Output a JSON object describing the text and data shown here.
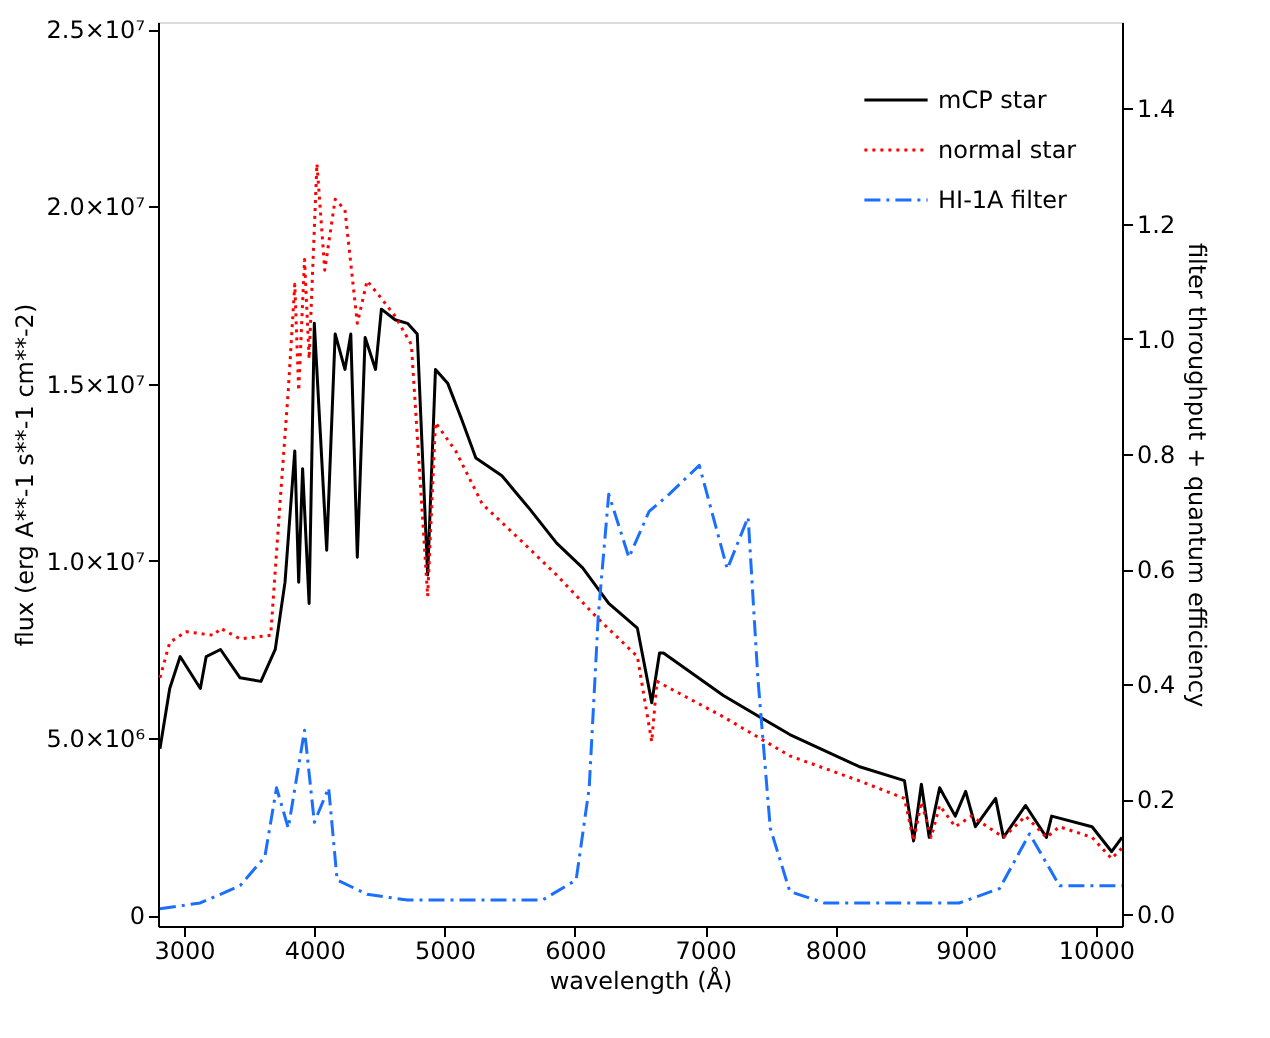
{
  "chart_data": {
    "type": "line",
    "xlabel": "wavelength (Å)",
    "ylabel": "flux (erg A**-1 s**-1 cm**-2)",
    "y2label": "filter throughput + quantum efficiency",
    "xlim": [
      2800,
      10200
    ],
    "xticks": [
      3000,
      4000,
      5000,
      6000,
      7000,
      8000,
      9000,
      10000
    ],
    "ylim": [
      -300000,
      25200000
    ],
    "yticks": [
      0,
      {
        "value": 5000000,
        "label": "5.0×10⁶"
      },
      {
        "value": 10000000,
        "label": "1.0×10⁷"
      },
      {
        "value": 15000000,
        "label": "1.5×10⁷"
      },
      {
        "value": 20000000,
        "label": "2.0×10⁷"
      },
      {
        "value": 25000000,
        "label": "2.5×10⁷"
      }
    ],
    "y2lim": [
      -0.02,
      1.55
    ],
    "y2ticks": [
      {
        "value": 0,
        "label": "0.0"
      },
      0.2,
      0.4,
      0.6,
      0.8,
      {
        "value": 1,
        "label": "1.0"
      },
      1.2,
      1.4
    ],
    "grid": false,
    "legend": "top right",
    "marker": "none",
    "series": [
      {
        "name": "mCP star",
        "color": "#000000",
        "line_style": "solid",
        "x": [
          2815,
          2890,
          2970,
          3125,
          3170,
          3280,
          3430,
          3590,
          3700,
          3775,
          3850,
          3880,
          3910,
          3960,
          4000,
          4095,
          4160,
          4235,
          4280,
          4330,
          4390,
          4470,
          4515,
          4620,
          4715,
          4790,
          4870,
          4930,
          5025,
          5130,
          5240,
          5440,
          5645,
          5860,
          6060,
          6260,
          6480,
          6590,
          6650,
          6680,
          7140,
          7650,
          8180,
          8530,
          8600,
          8660,
          8720,
          8800,
          8920,
          9000,
          9075,
          9230,
          9290,
          9460,
          9620,
          9660,
          9970,
          10120,
          10200
        ],
        "values": [
          4700000,
          6400000,
          7300000,
          6400000,
          7300000,
          7500000,
          6700000,
          6600000,
          7500000,
          9400000,
          13100000,
          9400000,
          12600000,
          8800000,
          16700000,
          10300000,
          16400000,
          15400000,
          16400000,
          10100000,
          16300000,
          15400000,
          17100000,
          16800000,
          16700000,
          16400000,
          9600000,
          15400000,
          15000000,
          14000000,
          12900000,
          12400000,
          11500000,
          10500000,
          9800000,
          8800000,
          8100000,
          6000000,
          7400000,
          7400000,
          6200000,
          5100000,
          4200000,
          3800000,
          2100000,
          3700000,
          2200000,
          3600000,
          2800000,
          3500000,
          2500000,
          3300000,
          2200000,
          3100000,
          2200000,
          2800000,
          2500000,
          1800000,
          2200000
        ]
      },
      {
        "name": "normal star",
        "color": "#ff0000",
        "line_style": "dotted",
        "x": [
          2815,
          2890,
          3015,
          3230,
          3280,
          3430,
          3665,
          3740,
          3800,
          3850,
          3880,
          3925,
          3960,
          4020,
          4080,
          4160,
          4235,
          4330,
          4405,
          4515,
          4620,
          4745,
          4870,
          4930,
          5085,
          5290,
          5550,
          5860,
          6170,
          6480,
          6590,
          6630,
          7140,
          7650,
          8180,
          8530,
          8600,
          8660,
          8735,
          8800,
          8920,
          9045,
          9290,
          9460,
          9620,
          9720,
          9970,
          10120,
          10200
        ],
        "values": [
          6700000,
          7700000,
          8000000,
          7900000,
          8100000,
          7800000,
          7900000,
          11800000,
          14800000,
          17800000,
          14800000,
          18500000,
          15700000,
          21200000,
          18200000,
          20200000,
          19900000,
          16700000,
          17900000,
          17400000,
          16900000,
          16100000,
          9000000,
          13900000,
          13100000,
          11600000,
          10700000,
          9600000,
          8400000,
          7300000,
          4900000,
          6600000,
          5600000,
          4500000,
          3800000,
          3300000,
          2100000,
          3200000,
          2200000,
          3100000,
          2500000,
          2800000,
          2200000,
          2800000,
          2200000,
          2500000,
          2200000,
          1600000,
          1900000
        ]
      },
      {
        "name": "HI-1A filter",
        "color": "#1a6fff",
        "line_style": "dashed",
        "axis": "y2",
        "x": [
          2815,
          3125,
          3430,
          3620,
          3710,
          3800,
          3925,
          4000,
          4110,
          4175,
          4405,
          4715,
          5750,
          6010,
          6110,
          6180,
          6260,
          6415,
          6570,
          6725,
          6955,
          7170,
          7330,
          7405,
          7500,
          7650,
          7915,
          8950,
          9260,
          9490,
          9720,
          10200
        ],
        "values": [
          0.01,
          0.02,
          0.05,
          0.1,
          0.22,
          0.15,
          0.32,
          0.16,
          0.22,
          0.06,
          0.035,
          0.025,
          0.025,
          0.06,
          0.22,
          0.52,
          0.73,
          0.62,
          0.7,
          0.73,
          0.78,
          0.6,
          0.69,
          0.41,
          0.15,
          0.04,
          0.02,
          0.02,
          0.045,
          0.14,
          0.05,
          0.05
        ]
      }
    ]
  }
}
